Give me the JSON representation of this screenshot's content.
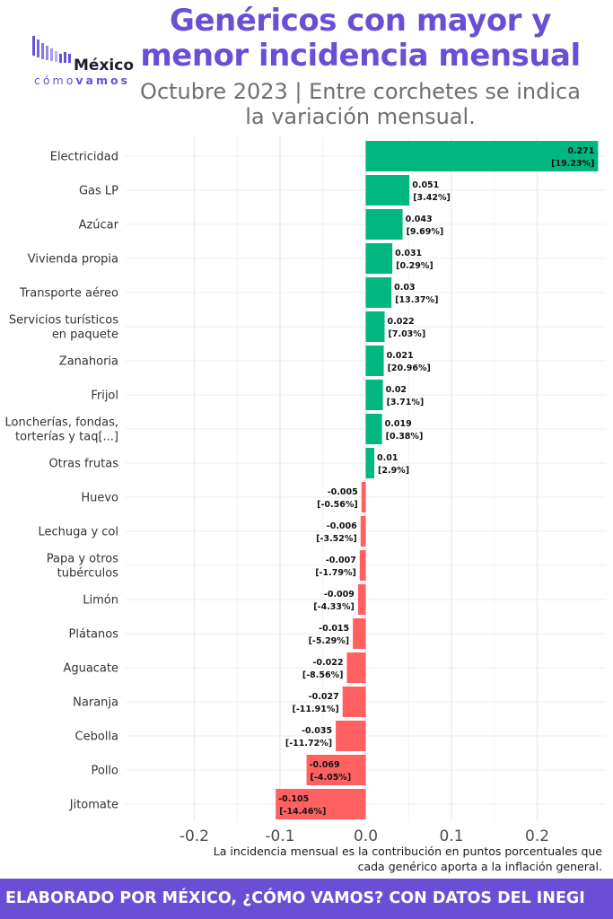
{
  "header": {
    "title_line1": "Genéricos con mayor y",
    "title_line2": "menor incidencia mensual",
    "subtitle_line1": "Octubre 2023 | Entre corchetes se indica",
    "subtitle_line2": "la variación mensual."
  },
  "logo": {
    "main": "México",
    "sub_light": "cómo",
    "sub_bold": "vamos"
  },
  "note": {
    "line1": "La incidencia mensual es la contribución en puntos porcentuales que",
    "line2": "cada genérico aporta a la inflación general."
  },
  "footer": {
    "text": "ELABORADO POR MÉXICO, ¿CÓMO VAMOS? CON DATOS DEL INEGI"
  },
  "colors": {
    "positive": "#00b77f",
    "negative": "#ff6163",
    "accent": "#6a4fd6"
  },
  "chart_data": {
    "type": "bar",
    "orientation": "horizontal",
    "xlim": [
      -0.28,
      0.28
    ],
    "x_ticks": [
      -0.2,
      -0.1,
      0.0,
      0.1,
      0.2
    ],
    "x_tick_labels": [
      "-0.2",
      "-0.1",
      "0.0",
      "0.1",
      "0.2"
    ],
    "grid": true,
    "categories": [
      [
        "Electricidad"
      ],
      [
        "Gas LP"
      ],
      [
        "Azúcar"
      ],
      [
        "Vivienda propia"
      ],
      [
        "Transporte aéreo"
      ],
      [
        "Servicios turísticos",
        "en paquete"
      ],
      [
        "Zanahoria"
      ],
      [
        "Frijol"
      ],
      [
        "Loncherías, fondas,",
        "torterías y taq[...]"
      ],
      [
        "Otras frutas"
      ],
      [
        "Huevo"
      ],
      [
        "Lechuga y col"
      ],
      [
        "Papa y otros",
        "tubérculos"
      ],
      [
        "Limón"
      ],
      [
        "Plátanos"
      ],
      [
        "Aguacate"
      ],
      [
        "Naranja"
      ],
      [
        "Cebolla"
      ],
      [
        "Pollo"
      ],
      [
        "Jitomate"
      ]
    ],
    "values": [
      0.271,
      0.051,
      0.043,
      0.031,
      0.03,
      0.022,
      0.021,
      0.02,
      0.019,
      0.01,
      -0.005,
      -0.006,
      -0.007,
      -0.009,
      -0.015,
      -0.022,
      -0.027,
      -0.035,
      -0.069,
      -0.105
    ],
    "value_labels": [
      "0.271",
      "0.051",
      "0.043",
      "0.031",
      "0.03",
      "0.022",
      "0.021",
      "0.02",
      "0.019",
      "0.01",
      "-0.005",
      "-0.006",
      "-0.007",
      "-0.009",
      "-0.015",
      "-0.022",
      "-0.027",
      "-0.035",
      "-0.069",
      "-0.105"
    ],
    "variation_labels": [
      "[19.23%]",
      "[3.42%]",
      "[9.69%]",
      "[0.29%]",
      "[13.37%]",
      "[7.03%]",
      "[20.96%]",
      "[3.71%]",
      "[0.38%]",
      "[2.9%]",
      "[-0.56%]",
      "[-3.52%]",
      "[-1.79%]",
      "[-4.33%]",
      "[-5.29%]",
      "[-8.56%]",
      "[-11.91%]",
      "[-11.72%]",
      "[-4.05%]",
      "[-14.46%]"
    ]
  }
}
